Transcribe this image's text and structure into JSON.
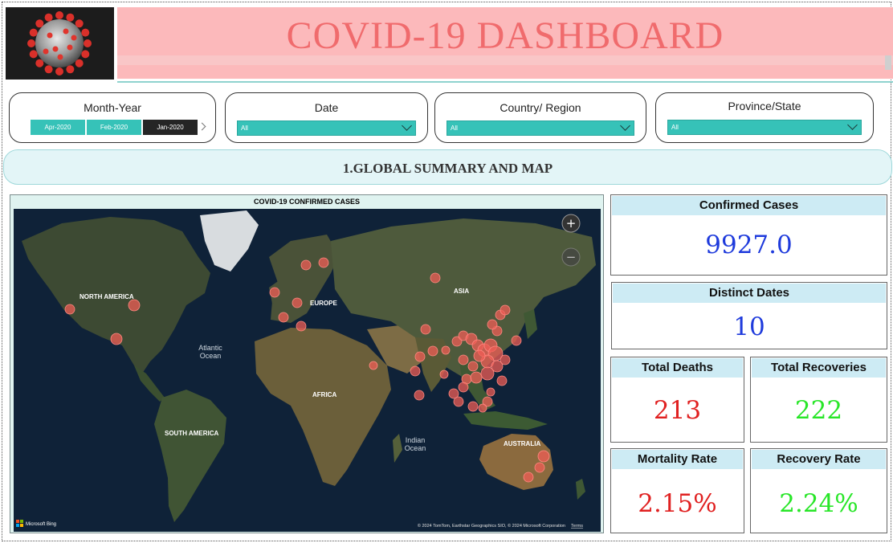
{
  "header": {
    "title": "COVID-19 DASHBOARD"
  },
  "slicers": {
    "month_year": {
      "title": "Month-Year",
      "options": [
        "Apr-2020",
        "Feb-2020",
        "Jan-2020"
      ],
      "selected": "Jan-2020"
    },
    "date": {
      "title": "Date",
      "value": "All"
    },
    "country": {
      "title": "Country/ Region",
      "value": "All"
    },
    "province": {
      "title": "Province/State",
      "value": "All"
    }
  },
  "section": {
    "title": "1.GLOBAL SUMMARY AND MAP"
  },
  "map": {
    "title": "COVID-19 CONFIRMED CASES",
    "labels": {
      "north_america": "NORTH AMERICA",
      "south_america": "SOUTH AMERICA",
      "europe": "EUROPE",
      "africa": "AFRICA",
      "asia": "ASIA",
      "australia": "AUSTRALIA",
      "atlantic_1": "Atlantic",
      "atlantic_2": "Ocean",
      "indian_1": "Indian",
      "indian_2": "Ocean"
    },
    "bing": "Microsoft Bing",
    "attribution": "© 2024 TomTom, Earthstar Geographics SIO, © 2024 Microsoft Corporation",
    "terms": "Terms",
    "zoom_in": "+",
    "zoom_out": "−"
  },
  "kpis": {
    "confirmed": {
      "label": "Confirmed Cases",
      "value": "9927.0"
    },
    "dates": {
      "label": "Distinct Dates",
      "value": "10"
    },
    "deaths": {
      "label": "Total Deaths",
      "value": "213"
    },
    "recoveries": {
      "label": "Total Recoveries",
      "value": "222"
    },
    "mortality": {
      "label": "Mortality Rate",
      "value": "2.15%"
    },
    "recovery_rate": {
      "label": "Recovery Rate",
      "value": "2.24%"
    }
  },
  "colors": {
    "accent_teal": "#36c2b8",
    "title_red": "#f06b6d",
    "banner_pink": "#fcb9bb",
    "value_blue": "#1f3bdc",
    "value_red": "#e02020",
    "value_green": "#28e628",
    "bubble": "#ef5d55"
  }
}
